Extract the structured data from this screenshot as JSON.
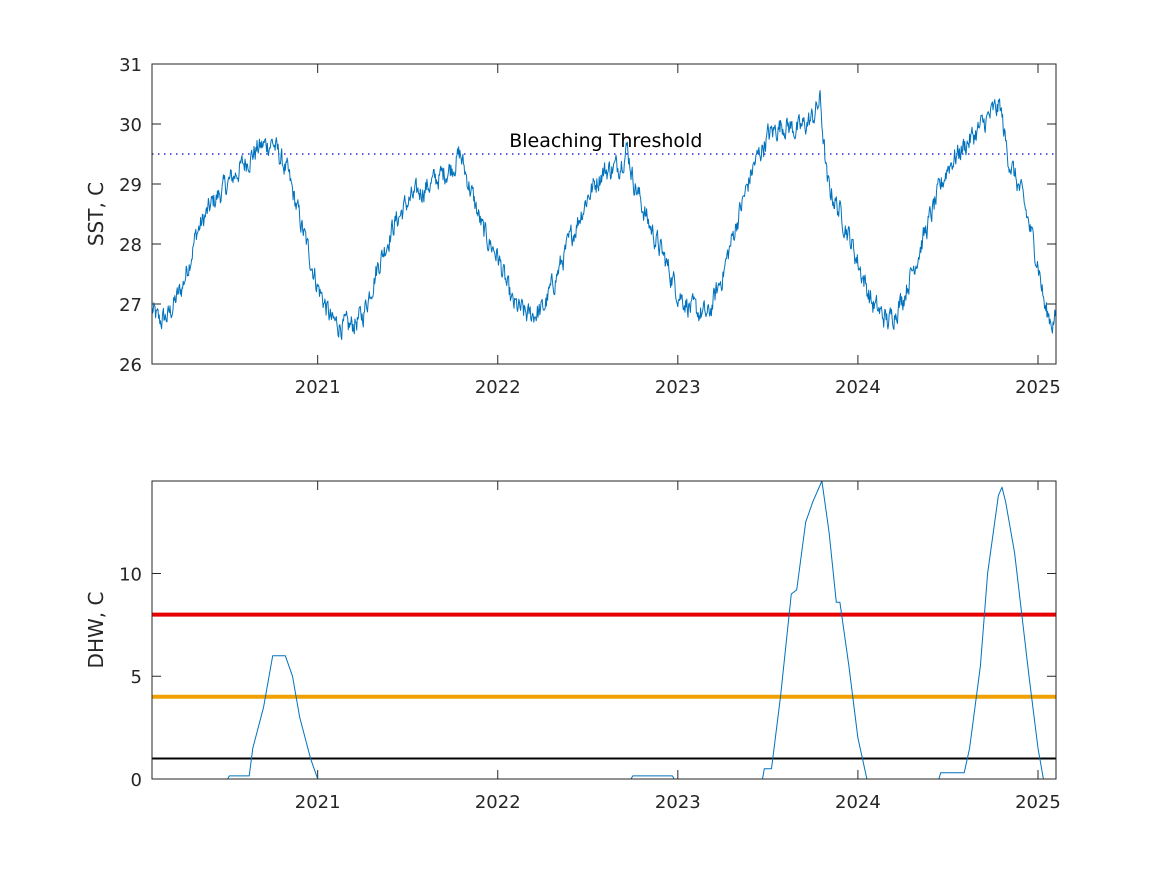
{
  "chart_data": [
    {
      "type": "line",
      "ylabel": "SST, C",
      "xlim": [
        2020.08,
        2025.1
      ],
      "ylim": [
        26,
        31
      ],
      "xticks": [
        "2021",
        "2022",
        "2023",
        "2024",
        "2025"
      ],
      "yticks": [
        "26",
        "27",
        "28",
        "29",
        "30",
        "31"
      ],
      "series": [
        {
          "color": "#0072BD",
          "x": [
            2020.08,
            2020.12,
            2020.17,
            2020.25,
            2020.33,
            2020.42,
            2020.5,
            2020.58,
            2020.67,
            2020.75,
            2020.83,
            2020.92,
            2021.0,
            2021.08,
            2021.17,
            2021.25,
            2021.33,
            2021.42,
            2021.5,
            2021.58,
            2021.67,
            2021.75,
            2021.79,
            2021.83,
            2021.92,
            2022.0,
            2022.08,
            2022.17,
            2022.25,
            2022.33,
            2022.42,
            2022.5,
            2022.58,
            2022.67,
            2022.72,
            2022.75,
            2022.83,
            2022.92,
            2023.0,
            2023.08,
            2023.17,
            2023.25,
            2023.33,
            2023.42,
            2023.5,
            2023.58,
            2023.67,
            2023.75,
            2023.79,
            2023.83,
            2023.92,
            2024.0,
            2024.08,
            2024.17,
            2024.25,
            2024.33,
            2024.42,
            2024.5,
            2024.58,
            2024.67,
            2024.75,
            2024.79,
            2024.83,
            2024.92,
            2025.0,
            2025.04,
            2025.08,
            2025.1
          ],
          "y": [
            26.9,
            26.7,
            26.8,
            27.3,
            28.2,
            28.7,
            29.0,
            29.3,
            29.6,
            29.7,
            29.2,
            28.2,
            27.3,
            26.7,
            26.6,
            26.8,
            27.6,
            28.3,
            28.7,
            28.9,
            29.1,
            29.3,
            29.5,
            29.1,
            28.2,
            27.8,
            27.0,
            26.8,
            26.9,
            27.5,
            28.2,
            28.8,
            29.2,
            29.3,
            29.6,
            29.1,
            28.4,
            27.8,
            27.2,
            26.9,
            26.8,
            27.5,
            28.4,
            29.3,
            29.8,
            30.0,
            29.9,
            30.1,
            30.4,
            29.0,
            28.4,
            27.7,
            27.0,
            26.7,
            27.1,
            27.8,
            28.6,
            29.3,
            29.6,
            29.9,
            30.2,
            30.3,
            29.5,
            28.7,
            27.7,
            26.9,
            26.7,
            26.8
          ]
        }
      ],
      "threshold": {
        "value": 29.5,
        "color": "#0000CC",
        "style": "dotted",
        "label": "Bleaching Threshold",
        "label_x": 2022.6
      }
    },
    {
      "type": "line",
      "ylabel": "DHW, C",
      "xlim": [
        2020.08,
        2025.1
      ],
      "ylim": [
        0,
        14.5
      ],
      "xticks": [
        "2021",
        "2022",
        "2023",
        "2024",
        "2025"
      ],
      "yticks": [
        "0",
        "5",
        "10"
      ],
      "series": [
        {
          "color": "#0072BD",
          "x": [
            2020.08,
            2020.5,
            2020.51,
            2020.62,
            2020.64,
            2020.7,
            2020.75,
            2020.82,
            2020.86,
            2020.9,
            2020.96,
            2021.0,
            2022.74,
            2022.75,
            2022.97,
            2022.98,
            2023.47,
            2023.48,
            2023.52,
            2023.57,
            2023.63,
            2023.66,
            2023.71,
            2023.75,
            2023.8,
            2023.84,
            2023.88,
            2023.9,
            2023.95,
            2024.0,
            2024.05,
            2024.45,
            2024.46,
            2024.59,
            2024.62,
            2024.68,
            2024.72,
            2024.78,
            2024.8,
            2024.82,
            2024.87,
            2024.95,
            2025.0,
            2025.03,
            2025.1
          ],
          "y": [
            0,
            0,
            0.15,
            0.15,
            1.5,
            3.5,
            6.0,
            6.0,
            5.0,
            3.0,
            1.0,
            0,
            0,
            0.15,
            0.15,
            0,
            0,
            0.5,
            0.5,
            4.0,
            9.0,
            9.2,
            12.5,
            13.5,
            14.5,
            12.0,
            8.6,
            8.6,
            5.5,
            2.0,
            0,
            0,
            0.3,
            0.3,
            1.5,
            5.5,
            10.0,
            13.8,
            14.2,
            13.5,
            11.0,
            5.0,
            1.5,
            0,
            0
          ]
        }
      ],
      "thresholds": [
        {
          "value": 8,
          "color": "#E60000"
        },
        {
          "value": 4,
          "color": "#F0A000"
        },
        {
          "value": 1,
          "color": "#000000"
        }
      ]
    }
  ]
}
